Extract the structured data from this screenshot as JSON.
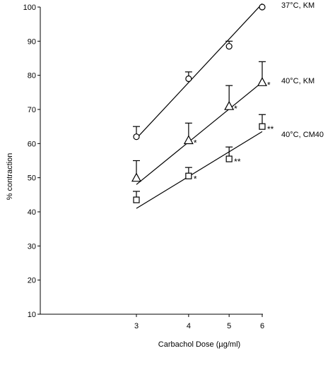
{
  "chart_data": {
    "type": "scatter",
    "xlabel": "Carbachol Dose (µg/ml)",
    "ylabel": "% contraction",
    "x_scale": "log",
    "x_ticks": [
      3,
      4,
      5,
      6
    ],
    "y_ticks": [
      10,
      20,
      30,
      40,
      50,
      60,
      70,
      80,
      90,
      100
    ],
    "ylim": [
      10,
      100
    ],
    "grid": false,
    "series": [
      {
        "name": "37°C, KM",
        "marker": "circle",
        "x": [
          3,
          4,
          5,
          6
        ],
        "y": [
          62,
          79,
          88.5,
          100
        ],
        "error_upper": [
          3,
          2,
          1.5,
          0
        ],
        "significance": [
          "",
          "",
          "",
          ""
        ],
        "fit_line": {
          "x": [
            3,
            6
          ],
          "y": [
            61.5,
            101
          ]
        }
      },
      {
        "name": "40°C, KM",
        "marker": "triangle",
        "x": [
          3,
          4,
          5,
          6
        ],
        "y": [
          50,
          61,
          71,
          78
        ],
        "error_upper": [
          5,
          5,
          6,
          6
        ],
        "significance": [
          "",
          "*",
          "*",
          "*"
        ],
        "fit_line": {
          "x": [
            3,
            6
          ],
          "y": [
            48,
            78
          ]
        }
      },
      {
        "name": "40°C, CM40",
        "marker": "square",
        "x": [
          3,
          4,
          5,
          6
        ],
        "y": [
          43.5,
          50.5,
          55.5,
          65
        ],
        "error_upper": [
          2.5,
          2.5,
          3.5,
          3.5
        ],
        "significance": [
          "",
          "*",
          "**",
          "**"
        ],
        "fit_line": {
          "x": [
            3,
            6
          ],
          "y": [
            41,
            63.5
          ]
        }
      }
    ]
  }
}
